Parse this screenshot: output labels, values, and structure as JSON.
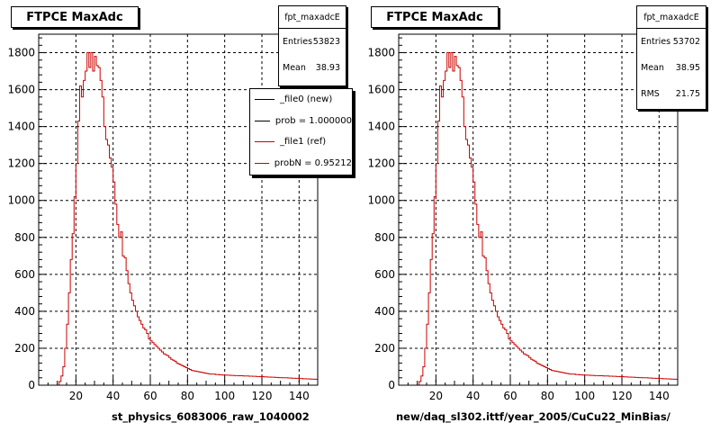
{
  "chart_data": [
    {
      "type": "histogram",
      "title": "FTPCE MaxAdc",
      "xlabel": "st_physics_6083006_raw_1040002",
      "ylabel": "",
      "xlim": [
        0,
        150
      ],
      "ylim": [
        0,
        1900
      ],
      "grid": true,
      "x_ticks": [
        "20",
        "40",
        "60",
        "80",
        "100",
        "120",
        "140"
      ],
      "y_ticks": [
        "0",
        "200",
        "400",
        "600",
        "800",
        "1000",
        "1200",
        "1400",
        "1600",
        "1800"
      ],
      "stats": {
        "name": "fpt_maxadcE",
        "rows": [
          {
            "label": "Entries",
            "value": "53823"
          },
          {
            "label": "Mean",
            "value": "38.93"
          }
        ]
      },
      "legend": {
        "placement": "top-right",
        "entries": [
          {
            "label": "_file0 (new)",
            "color": "#000000"
          },
          {
            "label": "prob = 1.000000",
            "color": "#000000"
          },
          {
            "label": "_file1 (ref)",
            "color": "#cc0000"
          },
          {
            "label": "probN = 0.95212",
            "color": "#cc0000"
          }
        ]
      },
      "series": [
        {
          "color": "#cc0000",
          "bin_width": 1,
          "x_start": 0,
          "values": [
            0,
            0,
            0,
            0,
            0,
            0,
            0,
            0,
            0,
            0,
            0,
            20,
            50,
            100,
            200,
            330,
            500,
            680,
            820,
            1020,
            1200,
            1430,
            1620,
            1560,
            1650,
            1700,
            1800,
            1720,
            1800,
            1700,
            1780,
            1730,
            1720,
            1650,
            1560,
            1400,
            1330,
            1300,
            1230,
            1180,
            1100,
            980,
            870,
            800,
            830,
            700,
            690,
            620,
            550,
            500,
            460,
            430,
            400,
            370,
            350,
            330,
            310,
            300,
            280,
            250,
            240,
            230,
            220,
            210,
            200,
            190,
            180,
            170,
            165,
            160,
            150,
            140,
            135,
            130,
            120,
            115,
            110,
            105,
            100,
            95,
            90,
            85,
            80,
            78,
            76,
            74,
            72,
            70,
            68,
            66,
            64,
            62,
            60,
            60,
            60,
            58,
            58,
            56,
            56,
            55,
            55,
            54,
            54,
            53,
            53,
            52,
            52,
            52,
            51,
            51,
            50,
            50,
            50,
            49,
            49,
            48,
            48,
            47,
            47,
            46,
            46,
            45,
            45,
            44,
            44,
            43,
            43,
            42,
            42,
            41,
            41,
            40,
            40,
            40,
            39,
            39,
            38,
            38,
            37,
            37,
            36,
            36,
            35,
            35,
            34,
            34,
            33,
            33,
            32,
            32
          ]
        }
      ]
    },
    {
      "type": "histogram",
      "title": "FTPCE MaxAdc",
      "xlabel": "new/daq_sl302.ittf/year_2005/CuCu22_MinBias/",
      "ylabel": "",
      "xlim": [
        0,
        150
      ],
      "ylim": [
        0,
        1900
      ],
      "grid": true,
      "x_ticks": [
        "20",
        "40",
        "60",
        "80",
        "100",
        "120",
        "140"
      ],
      "y_ticks": [
        "0",
        "200",
        "400",
        "600",
        "800",
        "1000",
        "1200",
        "1400",
        "1600",
        "1800"
      ],
      "stats": {
        "name": "fpt_maxadcE",
        "rows": [
          {
            "label": "Entries",
            "value": "53702"
          },
          {
            "label": "Mean",
            "value": "38.95"
          },
          {
            "label": "RMS",
            "value": "21.75"
          }
        ]
      },
      "series": [
        {
          "color": "#cc0000",
          "bin_width": 1,
          "x_start": 0,
          "values": [
            0,
            0,
            0,
            0,
            0,
            0,
            0,
            0,
            0,
            0,
            0,
            20,
            50,
            100,
            200,
            330,
            500,
            680,
            820,
            1020,
            1200,
            1430,
            1620,
            1560,
            1650,
            1700,
            1800,
            1720,
            1800,
            1700,
            1780,
            1730,
            1720,
            1650,
            1560,
            1400,
            1330,
            1300,
            1230,
            1180,
            1100,
            980,
            870,
            800,
            830,
            700,
            690,
            620,
            550,
            500,
            460,
            430,
            400,
            370,
            350,
            330,
            310,
            300,
            280,
            250,
            240,
            230,
            220,
            210,
            200,
            190,
            180,
            170,
            165,
            160,
            150,
            140,
            135,
            130,
            120,
            115,
            110,
            105,
            100,
            95,
            90,
            85,
            80,
            78,
            76,
            74,
            72,
            70,
            68,
            66,
            64,
            62,
            60,
            60,
            60,
            58,
            58,
            56,
            56,
            55,
            55,
            54,
            54,
            53,
            53,
            52,
            52,
            52,
            51,
            51,
            50,
            50,
            50,
            49,
            49,
            48,
            48,
            47,
            47,
            46,
            46,
            45,
            45,
            44,
            44,
            43,
            43,
            42,
            42,
            41,
            41,
            40,
            40,
            40,
            39,
            39,
            38,
            38,
            37,
            37,
            36,
            36,
            35,
            35,
            34,
            34,
            33,
            33,
            32,
            32
          ]
        }
      ]
    }
  ]
}
